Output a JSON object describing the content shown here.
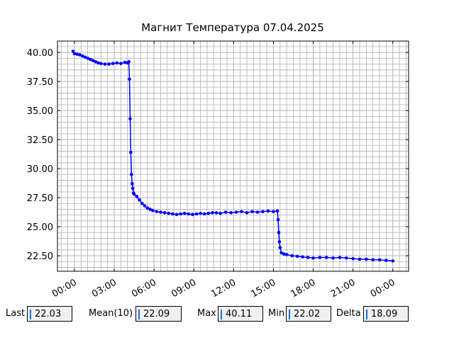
{
  "chart_data": {
    "type": "line",
    "title": "Магнит Температура 07.04.2025",
    "x": [
      -0.1,
      0,
      0.2,
      0.4,
      0.6,
      0.8,
      1.0,
      1.2,
      1.4,
      1.6,
      1.8,
      2.0,
      2.3,
      2.6,
      2.9,
      3.2,
      3.5,
      3.8,
      4.0,
      4.1,
      4.15,
      4.2,
      4.25,
      4.3,
      4.35,
      4.4,
      4.45,
      4.5,
      4.7,
      4.9,
      5.1,
      5.3,
      5.5,
      5.7,
      5.9,
      6.2,
      6.5,
      6.8,
      7.1,
      7.4,
      7.7,
      8.0,
      8.3,
      8.6,
      8.9,
      9.2,
      9.5,
      9.8,
      10.1,
      10.4,
      10.7,
      11.0,
      11.4,
      11.8,
      12.2,
      12.6,
      13.0,
      13.4,
      13.8,
      14.2,
      14.6,
      15.0,
      15.3,
      15.35,
      15.4,
      15.45,
      15.5,
      15.6,
      15.8,
      16.0,
      16.4,
      16.8,
      17.2,
      17.6,
      18.0,
      18.5,
      19.0,
      19.5,
      20.0,
      20.5,
      21.0,
      21.5,
      22.0,
      22.5,
      23.0,
      23.5,
      24.0
    ],
    "series": [
      {
        "color": "#0000ff",
        "values": [
          40.1,
          39.9,
          39.85,
          39.8,
          39.7,
          39.6,
          39.5,
          39.4,
          39.3,
          39.2,
          39.1,
          39.05,
          39.0,
          39.0,
          39.05,
          39.1,
          39.05,
          39.15,
          39.1,
          39.2,
          37.7,
          34.3,
          31.4,
          29.5,
          28.7,
          28.3,
          27.9,
          27.8,
          27.6,
          27.3,
          27.0,
          26.8,
          26.6,
          26.5,
          26.4,
          26.3,
          26.25,
          26.2,
          26.15,
          26.1,
          26.05,
          26.1,
          26.15,
          26.1,
          26.05,
          26.1,
          26.15,
          26.1,
          26.15,
          26.2,
          26.2,
          26.15,
          26.25,
          26.2,
          26.25,
          26.3,
          26.2,
          26.3,
          26.25,
          26.3,
          26.35,
          26.3,
          26.35,
          25.6,
          24.5,
          23.7,
          23.2,
          22.75,
          22.65,
          22.6,
          22.5,
          22.45,
          22.4,
          22.35,
          22.3,
          22.35,
          22.35,
          22.3,
          22.35,
          22.3,
          22.25,
          22.2,
          22.2,
          22.15,
          22.15,
          22.1,
          22.05
        ]
      }
    ],
    "xlim": [
      -1.28,
      25.19
    ],
    "xticks": [
      {
        "value": 0,
        "label": "00:00"
      },
      {
        "value": 3,
        "label": "03:00"
      },
      {
        "value": 6,
        "label": "06:00"
      },
      {
        "value": 9,
        "label": "09:00"
      },
      {
        "value": 12,
        "label": "12:00"
      },
      {
        "value": 15,
        "label": "15:00"
      },
      {
        "value": 18,
        "label": "18:00"
      },
      {
        "value": 21,
        "label": "21:00"
      },
      {
        "value": 24,
        "label": "00:00"
      }
    ],
    "ylim": [
      21.16,
      40.98
    ],
    "yticks": [
      {
        "value": 22.5,
        "label": "22.50"
      },
      {
        "value": 25,
        "label": "25.00"
      },
      {
        "value": 27.5,
        "label": "27.50"
      },
      {
        "value": 30,
        "label": "30.00"
      },
      {
        "value": 32.5,
        "label": "32.50"
      },
      {
        "value": 35,
        "label": "35.00"
      },
      {
        "value": 37.5,
        "label": "37.50"
      },
      {
        "value": 40,
        "label": "40.00"
      }
    ],
    "grid": true
  },
  "stats": [
    {
      "label": "Last",
      "value": 22.03
    },
    {
      "label": "Mean(10)",
      "value": 22.09
    },
    {
      "label": "Max",
      "value": 40.11
    },
    {
      "label": "Min",
      "value": 22.02
    },
    {
      "label": "Delta",
      "value": 18.09
    }
  ]
}
